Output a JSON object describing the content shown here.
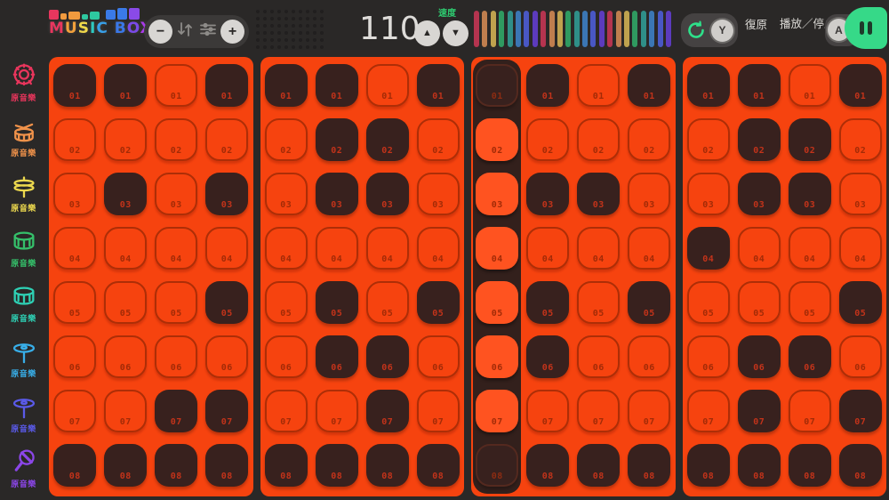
{
  "app": {
    "title": "MUSIC BOX"
  },
  "topbar": {
    "logo": {
      "text": "MUSIC BOX",
      "letters": [
        {
          "ch": "M",
          "color": "#e8365e"
        },
        {
          "ch": "U",
          "color": "#f0a03c"
        },
        {
          "ch": "S",
          "color": "#f0d84a"
        },
        {
          "ch": "I",
          "color": "#2ec8c0"
        },
        {
          "ch": "C",
          "color": "#38a0e8"
        },
        {
          "ch": " ",
          "color": "#ffffff"
        },
        {
          "ch": "B",
          "color": "#3a78e8"
        },
        {
          "ch": "O",
          "color": "#7a4ae8"
        },
        {
          "ch": "X",
          "color": "#a83ae8"
        }
      ],
      "blocks": [
        {
          "w": 11,
          "h": 11,
          "color": "#e8365e"
        },
        {
          "w": 7,
          "h": 7,
          "color": "#f09a3e"
        },
        {
          "w": 13,
          "h": 9,
          "color": "#f09a3e"
        },
        {
          "w": 7,
          "h": 6,
          "color": "#2ec8a0"
        },
        {
          "w": 11,
          "h": 9,
          "color": "#2ec8a0"
        },
        {
          "w": 11,
          "h": 11,
          "color": "#3a7ae8",
          "gap_before": true
        },
        {
          "w": 11,
          "h": 13,
          "color": "#3a7ae8"
        },
        {
          "w": 12,
          "h": 13,
          "color": "#8a4ae8"
        }
      ]
    },
    "controls": {
      "minus_label": "−",
      "plus_label": "+"
    },
    "tempo": {
      "value": "110",
      "label": "速度",
      "up_glyph": "▲",
      "down_glyph": "▼"
    },
    "equalizer": {
      "bar_count": 24,
      "cycle_colors": [
        "#b5344f",
        "#bf7e4e",
        "#bfa24e",
        "#2f9a60",
        "#2f8f88",
        "#3b76b4",
        "#4957c4",
        "#5c3bbd"
      ]
    },
    "undo": {
      "label": "復原",
      "button_key": "Y",
      "icon_color": "#2ee08a"
    },
    "play": {
      "label": "播放／停止",
      "button_key": "A",
      "state": "pause",
      "accent_color": "#36d988"
    }
  },
  "sidebar": {
    "items": [
      {
        "icon": "taiko-drum-icon",
        "label": "原音樂",
        "color": "#e8355c"
      },
      {
        "icon": "snare-sticks-icon",
        "label": "原音樂",
        "color": "#f0924a"
      },
      {
        "icon": "hihat-icon",
        "label": "原音樂",
        "color": "#ecd84e"
      },
      {
        "icon": "tom-drum-icon",
        "label": "原音樂",
        "color": "#35c06a"
      },
      {
        "icon": "snare-drum-icon",
        "label": "原音樂",
        "color": "#2ed0b4"
      },
      {
        "icon": "cymbal-stand-icon",
        "label": "原音樂",
        "color": "#38aee8"
      },
      {
        "icon": "cymbal2-icon",
        "label": "原音樂",
        "color": "#5a5ae8"
      },
      {
        "icon": "shaker-icon",
        "label": "原音樂",
        "color": "#8b46e8"
      }
    ]
  },
  "sequencer": {
    "row_labels": [
      "01",
      "02",
      "03",
      "04",
      "05",
      "06",
      "07",
      "08"
    ],
    "playhead": {
      "panel": 2,
      "column": 0
    },
    "panels": [
      {
        "rows": [
          [
            1,
            1,
            0,
            1
          ],
          [
            0,
            0,
            0,
            0
          ],
          [
            0,
            1,
            0,
            1
          ],
          [
            0,
            0,
            0,
            0
          ],
          [
            0,
            0,
            0,
            1
          ],
          [
            0,
            0,
            0,
            0
          ],
          [
            0,
            0,
            1,
            1
          ],
          [
            1,
            1,
            1,
            1
          ]
        ]
      },
      {
        "rows": [
          [
            1,
            1,
            0,
            1
          ],
          [
            0,
            1,
            1,
            0
          ],
          [
            0,
            1,
            1,
            0
          ],
          [
            0,
            0,
            0,
            0
          ],
          [
            0,
            1,
            0,
            1
          ],
          [
            0,
            1,
            1,
            0
          ],
          [
            0,
            0,
            1,
            0
          ],
          [
            1,
            1,
            1,
            1
          ]
        ]
      },
      {
        "rows": [
          [
            1,
            1,
            0,
            1
          ],
          [
            0,
            0,
            0,
            0
          ],
          [
            0,
            1,
            1,
            0
          ],
          [
            0,
            0,
            0,
            0
          ],
          [
            0,
            1,
            0,
            1
          ],
          [
            0,
            1,
            0,
            0
          ],
          [
            0,
            0,
            0,
            0
          ],
          [
            1,
            1,
            1,
            1
          ]
        ]
      },
      {
        "rows": [
          [
            1,
            1,
            0,
            1
          ],
          [
            0,
            1,
            1,
            0
          ],
          [
            0,
            1,
            1,
            0
          ],
          [
            1,
            0,
            0,
            0
          ],
          [
            0,
            0,
            0,
            1
          ],
          [
            0,
            1,
            1,
            0
          ],
          [
            0,
            1,
            0,
            1
          ],
          [
            1,
            1,
            1,
            1
          ]
        ]
      }
    ]
  },
  "colors": {
    "background": "#2a2827",
    "panel_orange": "#f6430f",
    "active_pad": "#38211e",
    "playhead_strip": "#33201c",
    "accent_green": "#36d988",
    "tempo_label_green": "#2ecb70"
  }
}
